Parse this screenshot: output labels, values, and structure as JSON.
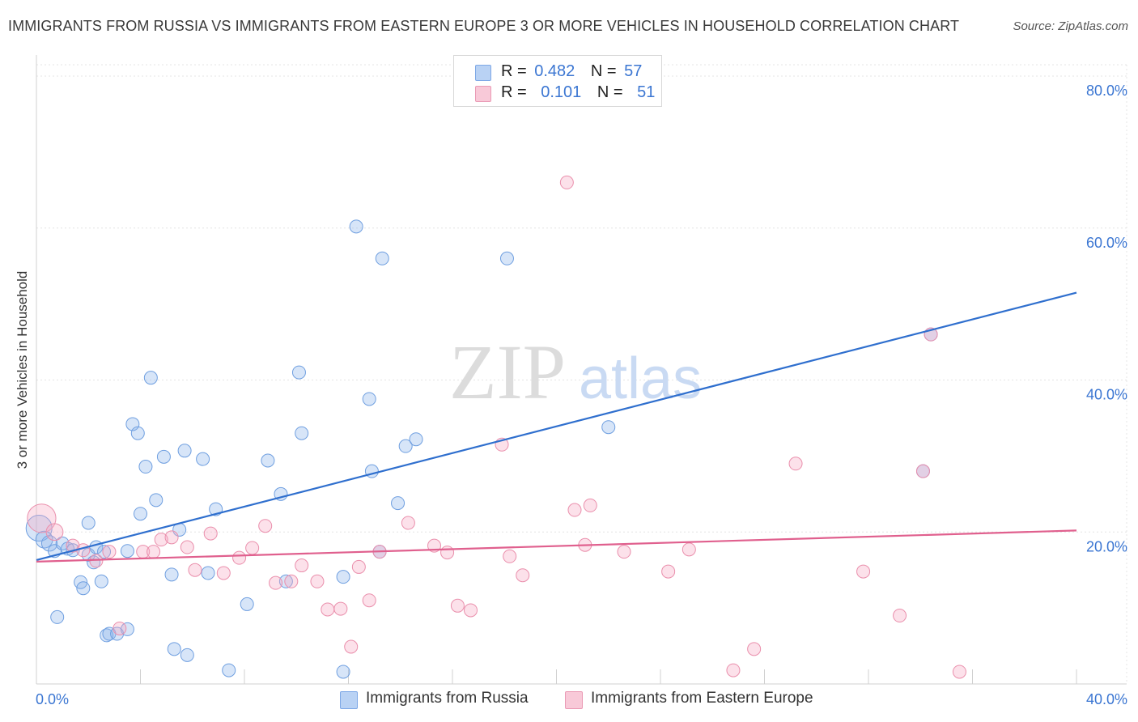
{
  "chart_data": {
    "type": "scatter",
    "title": "IMMIGRANTS FROM RUSSIA VS IMMIGRANTS FROM EASTERN EUROPE 3 OR MORE VEHICLES IN HOUSEHOLD CORRELATION CHART",
    "source": "Source: ZipAtlas.com",
    "watermark": {
      "zip": "ZIP",
      "atlas": "atlas"
    },
    "xlabel": "",
    "ylabel": "3 or more Vehicles in Household",
    "xlim": [
      0,
      40
    ],
    "ylim": [
      0,
      80
    ],
    "x_tick_labels": {
      "min": "0.0%",
      "max": "40.0%"
    },
    "y_ticks": [
      {
        "value": 20,
        "label": "20.0%"
      },
      {
        "value": 40,
        "label": "40.0%"
      },
      {
        "value": 60,
        "label": "60.0%"
      },
      {
        "value": 80,
        "label": "80.0%"
      }
    ],
    "legend": {
      "r_label": "R =",
      "n_label": "N =",
      "rows": [
        {
          "series": "Immigrants from Russia",
          "r": "0.482",
          "n": "57"
        },
        {
          "series": "Immigrants from Eastern Europe",
          "r": "0.101",
          "n": "51"
        }
      ]
    },
    "series": [
      {
        "name": "Immigrants from Russia",
        "color": "#6f9fe0",
        "fill": "rgba(140,180,235,0.35)",
        "line_color": "#2f6fce",
        "trend": {
          "x0": 0,
          "y0": 16.3,
          "x1": 40,
          "y1": 51.5
        },
        "points": [
          [
            0.1,
            20.5,
            2
          ],
          [
            0.3,
            19.0,
            1.3
          ],
          [
            0.5,
            18.5,
            1.2
          ],
          [
            0.7,
            17.5,
            1
          ],
          [
            1.0,
            18.5,
            1
          ],
          [
            1.2,
            17.8,
            1
          ],
          [
            1.4,
            17.6,
            1
          ],
          [
            2.0,
            17.0,
            1
          ],
          [
            2.2,
            16.0,
            1
          ],
          [
            2.3,
            18.0,
            1
          ],
          [
            2.6,
            17.4,
            1
          ],
          [
            3.5,
            17.5,
            1
          ],
          [
            2.0,
            21.2,
            1
          ],
          [
            0.8,
            8.8,
            1
          ],
          [
            1.7,
            13.4,
            1
          ],
          [
            1.8,
            12.6,
            1
          ],
          [
            2.5,
            13.5,
            1
          ],
          [
            2.7,
            6.4,
            1
          ],
          [
            2.8,
            6.6,
            1
          ],
          [
            3.1,
            6.6,
            1
          ],
          [
            3.5,
            7.2,
            1
          ],
          [
            3.7,
            34.2,
            1
          ],
          [
            3.9,
            33.0,
            1
          ],
          [
            4.2,
            28.6,
            1
          ],
          [
            4.4,
            40.3,
            1
          ],
          [
            4.6,
            24.2,
            1
          ],
          [
            4.9,
            29.9,
            1
          ],
          [
            5.2,
            14.4,
            1
          ],
          [
            5.5,
            20.3,
            1
          ],
          [
            5.7,
            30.7,
            1
          ],
          [
            5.8,
            3.8,
            1
          ],
          [
            6.4,
            29.6,
            1
          ],
          [
            6.6,
            14.6,
            1
          ],
          [
            6.9,
            23.0,
            1
          ],
          [
            7.4,
            1.8,
            1
          ],
          [
            4.0,
            22.4,
            1
          ],
          [
            5.3,
            4.6,
            1
          ],
          [
            8.1,
            10.5,
            1
          ],
          [
            8.9,
            29.4,
            1
          ],
          [
            9.4,
            25.0,
            1
          ],
          [
            9.6,
            13.5,
            1
          ],
          [
            10.1,
            41.0,
            1
          ],
          [
            10.2,
            33.0,
            1
          ],
          [
            11.8,
            14.1,
            1
          ],
          [
            11.8,
            1.6,
            1
          ],
          [
            12.3,
            60.2,
            1
          ],
          [
            12.8,
            37.5,
            1
          ],
          [
            12.9,
            28.0,
            1
          ],
          [
            13.2,
            17.4,
            1
          ],
          [
            13.3,
            56.0,
            1
          ],
          [
            13.9,
            23.8,
            1
          ],
          [
            14.2,
            31.3,
            1
          ],
          [
            14.6,
            32.2,
            1
          ],
          [
            18.1,
            56.0,
            1
          ],
          [
            22.0,
            33.8,
            1
          ],
          [
            34.1,
            28.0,
            1
          ],
          [
            34.4,
            46.0,
            1
          ]
        ]
      },
      {
        "name": "Immigrants from Eastern Europe",
        "color": "#ea8fac",
        "fill": "rgba(245,170,195,0.35)",
        "line_color": "#e0608e",
        "trend": {
          "x0": 0,
          "y0": 16.1,
          "x1": 40,
          "y1": 20.2
        },
        "points": [
          [
            0.2,
            21.8,
            2.2
          ],
          [
            0.7,
            20.0,
            1.3
          ],
          [
            1.4,
            18.2,
            1
          ],
          [
            1.8,
            17.6,
            1
          ],
          [
            2.3,
            16.2,
            1
          ],
          [
            2.8,
            17.4,
            1
          ],
          [
            3.2,
            7.3,
            1
          ],
          [
            4.1,
            17.4,
            1
          ],
          [
            4.5,
            17.4,
            1
          ],
          [
            4.8,
            19.0,
            1
          ],
          [
            5.2,
            19.3,
            1
          ],
          [
            5.8,
            18.0,
            1
          ],
          [
            6.1,
            15.0,
            1
          ],
          [
            6.7,
            19.8,
            1
          ],
          [
            7.2,
            14.6,
            1
          ],
          [
            7.8,
            16.6,
            1
          ],
          [
            8.3,
            17.9,
            1
          ],
          [
            8.8,
            20.8,
            1
          ],
          [
            9.2,
            13.3,
            1
          ],
          [
            9.8,
            13.5,
            1
          ],
          [
            10.2,
            15.6,
            1
          ],
          [
            10.8,
            13.5,
            1
          ],
          [
            11.2,
            9.8,
            1
          ],
          [
            11.7,
            9.9,
            1
          ],
          [
            12.1,
            4.9,
            1
          ],
          [
            12.4,
            15.4,
            1
          ],
          [
            12.8,
            11.0,
            1
          ],
          [
            13.2,
            17.4,
            1
          ],
          [
            14.3,
            21.2,
            1
          ],
          [
            15.3,
            18.2,
            1
          ],
          [
            15.8,
            17.3,
            1
          ],
          [
            16.2,
            10.3,
            1
          ],
          [
            16.7,
            9.7,
            1
          ],
          [
            17.9,
            31.5,
            1
          ],
          [
            18.2,
            16.8,
            1
          ],
          [
            18.7,
            14.3,
            1
          ],
          [
            20.4,
            66.0,
            1
          ],
          [
            20.7,
            22.9,
            1
          ],
          [
            21.1,
            18.3,
            1
          ],
          [
            21.3,
            23.5,
            1
          ],
          [
            22.6,
            17.4,
            1
          ],
          [
            24.3,
            14.8,
            1
          ],
          [
            25.1,
            17.7,
            1
          ],
          [
            26.8,
            1.8,
            1
          ],
          [
            27.6,
            4.6,
            1
          ],
          [
            29.2,
            29.0,
            1
          ],
          [
            31.8,
            14.8,
            1
          ],
          [
            33.2,
            9.0,
            1
          ],
          [
            34.1,
            28.0,
            1
          ],
          [
            34.4,
            46.0,
            1
          ],
          [
            35.5,
            1.6,
            1
          ]
        ]
      }
    ]
  }
}
